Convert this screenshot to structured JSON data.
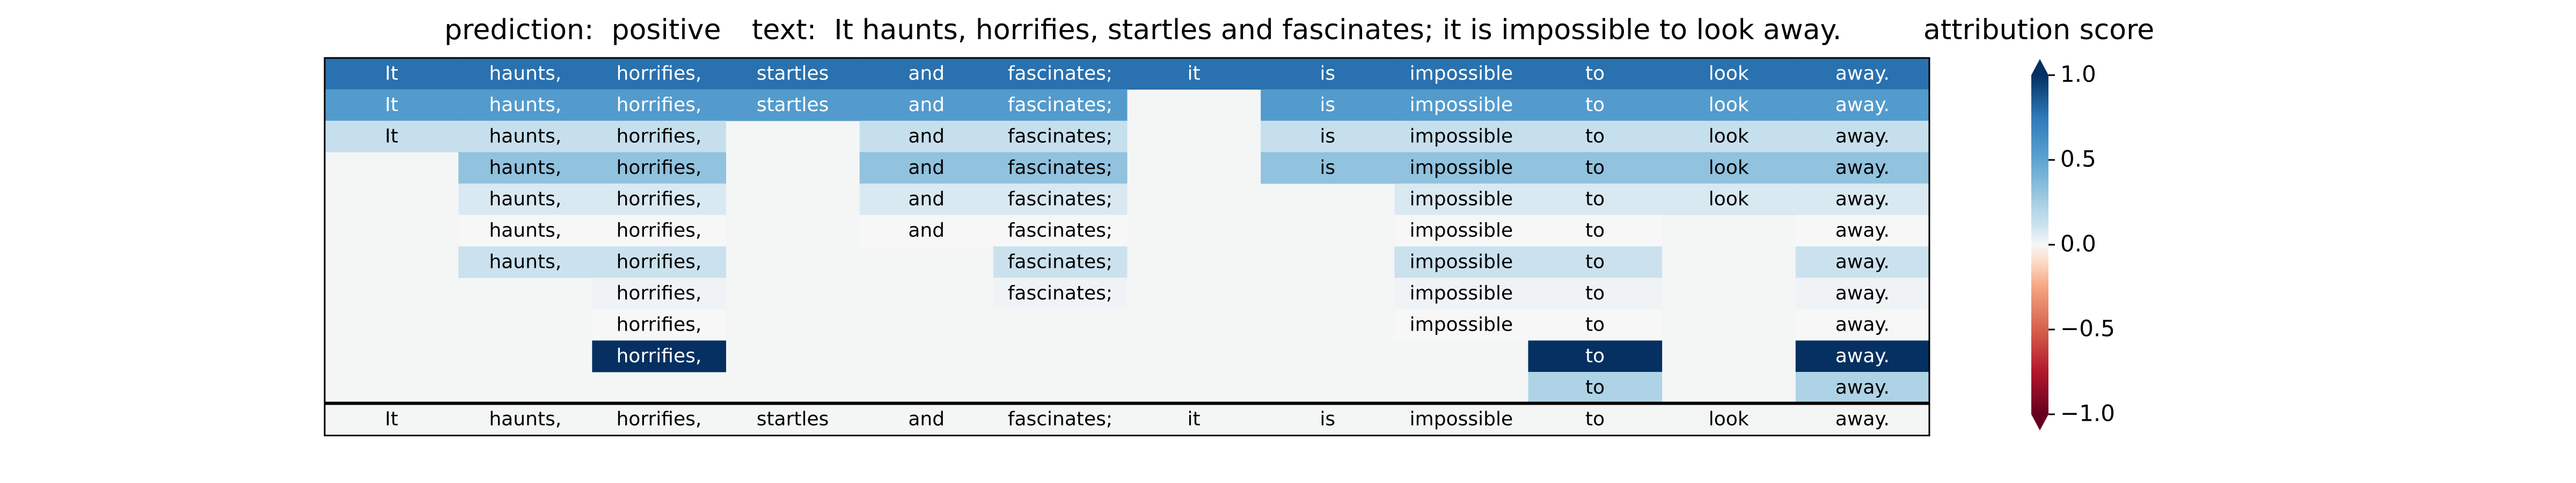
{
  "header": {
    "prediction": "prediction:  positive",
    "text": "text:  It haunts, horrifies, startles and fascinates; it is impossible to look away.",
    "colorbar_title": "attribution score"
  },
  "chart_data": {
    "type": "heatmap",
    "title": "",
    "colorbar": {
      "label": "attribution score",
      "range": [
        -1.0,
        1.0
      ],
      "ticks": [
        1.0,
        0.5,
        0.0,
        -0.5,
        -1.0
      ],
      "tick_labels": [
        "1.0",
        "0.5",
        "0.0",
        "−0.5",
        "−1.0"
      ],
      "colormap": "RdBu",
      "extend": "both"
    },
    "tokens": [
      "It",
      "haunts,",
      "horrifies,",
      "startles",
      "and",
      "fascinates;",
      "it",
      "is",
      "impossible",
      "to",
      "look",
      "away."
    ],
    "rows": [
      [
        0.78,
        0.78,
        0.78,
        0.78,
        0.78,
        0.78,
        0.78,
        0.78,
        0.78,
        0.78,
        0.78,
        0.78
      ],
      [
        0.55,
        0.55,
        0.55,
        0.55,
        0.55,
        0.55,
        null,
        0.55,
        0.55,
        0.55,
        0.55,
        0.55
      ],
      [
        0.14,
        0.14,
        0.14,
        null,
        0.14,
        0.14,
        null,
        0.14,
        0.14,
        0.14,
        0.14,
        0.14
      ],
      [
        null,
        0.32,
        0.32,
        null,
        0.32,
        0.32,
        null,
        0.32,
        0.32,
        0.32,
        0.32,
        0.32
      ],
      [
        null,
        0.08,
        0.08,
        null,
        0.08,
        0.08,
        null,
        null,
        0.08,
        0.08,
        0.08,
        0.08
      ],
      [
        null,
        0.0,
        0.0,
        null,
        0.0,
        0.0,
        null,
        null,
        0.0,
        0.0,
        null,
        0.0
      ],
      [
        null,
        0.12,
        0.12,
        null,
        null,
        0.12,
        null,
        null,
        0.12,
        0.12,
        null,
        0.12
      ],
      [
        null,
        null,
        0.02,
        null,
        null,
        0.02,
        null,
        null,
        0.02,
        0.02,
        null,
        0.02
      ],
      [
        null,
        null,
        0.0,
        null,
        null,
        null,
        null,
        null,
        0.0,
        0.0,
        null,
        0.0
      ],
      [
        null,
        null,
        1.0,
        null,
        null,
        null,
        null,
        null,
        null,
        1.0,
        null,
        1.0
      ],
      [
        null,
        null,
        null,
        null,
        null,
        null,
        null,
        null,
        null,
        0.22,
        null,
        0.22
      ]
    ],
    "bottom_row": [
      "It",
      "haunts,",
      "horrifies,",
      "startles",
      "and",
      "fascinates;",
      "it",
      "is",
      "impossible",
      "to",
      "look",
      "away."
    ]
  }
}
